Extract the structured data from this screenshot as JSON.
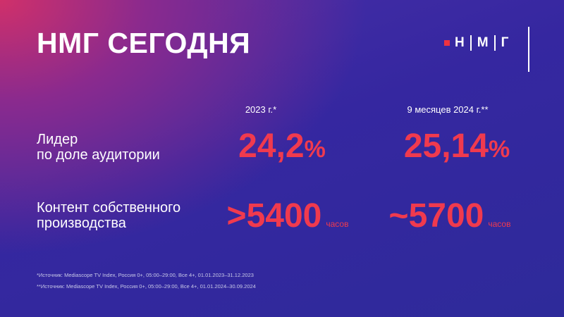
{
  "header": {
    "title": "НМГ СЕГОДНЯ",
    "logo": [
      "Н",
      "М",
      "Г"
    ]
  },
  "table": {
    "columns": [
      "2023 г.*",
      "9 месяцев 2024 г.**"
    ],
    "rows": [
      {
        "label": [
          "Лидер",
          "по доле аудитории"
        ],
        "cells": [
          {
            "value": "24,2",
            "unit": "%"
          },
          {
            "value": "25,14",
            "unit": "%"
          }
        ]
      },
      {
        "label": [
          "Контент собственного",
          "производства"
        ],
        "cells": [
          {
            "value": ">5400",
            "unit": "часов"
          },
          {
            "value": "~5700",
            "unit": "часов"
          }
        ]
      }
    ]
  },
  "footnotes": [
    "*Источник: Mediascope TV Index, Россия 0+, 05:00–29:00, Все 4+, 01.01.2023–31.12.2023",
    "**Источник: Mediascope TV Index, Россия 0+, 05:00–29:00, Все 4+, 01.01.2024–30.09.2024"
  ]
}
